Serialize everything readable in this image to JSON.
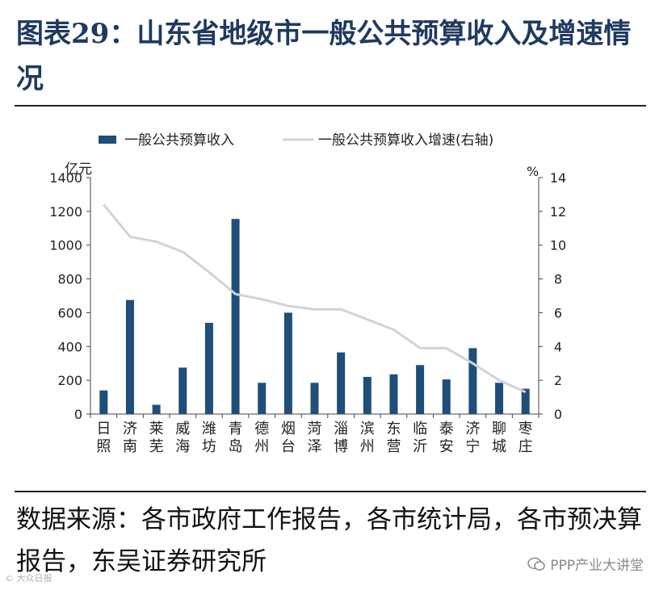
{
  "title": "图表29：山东省地级市一般公共预算收入及增速情况",
  "source": "数据来源：各市政府工作报告，各市统计局，各市预决算报告，东吴证券研究所",
  "watermark": "PPP产业大讲堂",
  "watermark_left": "© 大众日报",
  "colors": {
    "bar": "#1f4e79",
    "line": "#d0d3da",
    "title": "#1f3a60"
  },
  "chart_data": {
    "type": "bar",
    "categories": [
      "日照",
      "济南",
      "莱芜",
      "威海",
      "潍坊",
      "青岛",
      "德州",
      "烟台",
      "菏泽",
      "淄博",
      "滨州",
      "东营",
      "临沂",
      "泰安",
      "济宁",
      "聊城",
      "枣庄"
    ],
    "series": [
      {
        "name": "一般公共预算收入",
        "type": "bar",
        "axis": "left",
        "values": [
          140,
          675,
          55,
          275,
          540,
          1155,
          185,
          600,
          185,
          365,
          220,
          235,
          290,
          205,
          390,
          185,
          150
        ]
      },
      {
        "name": "一般公共预算收入增速(右轴)",
        "type": "line",
        "axis": "right",
        "values": [
          12.4,
          10.5,
          10.2,
          9.6,
          8.4,
          7.1,
          6.8,
          6.4,
          6.2,
          6.2,
          5.6,
          5.0,
          3.9,
          3.9,
          3.0,
          2.0,
          1.3
        ]
      }
    ],
    "y_left": {
      "label": "亿元",
      "min": 0,
      "max": 1400,
      "ticks": [
        0,
        200,
        400,
        600,
        800,
        1000,
        1200,
        1400
      ]
    },
    "y_right": {
      "label": "%",
      "min": 0,
      "max": 14,
      "ticks": [
        0,
        2,
        4,
        6,
        8,
        10,
        12,
        14
      ]
    },
    "legend": {
      "position": "top"
    },
    "grid": false
  }
}
